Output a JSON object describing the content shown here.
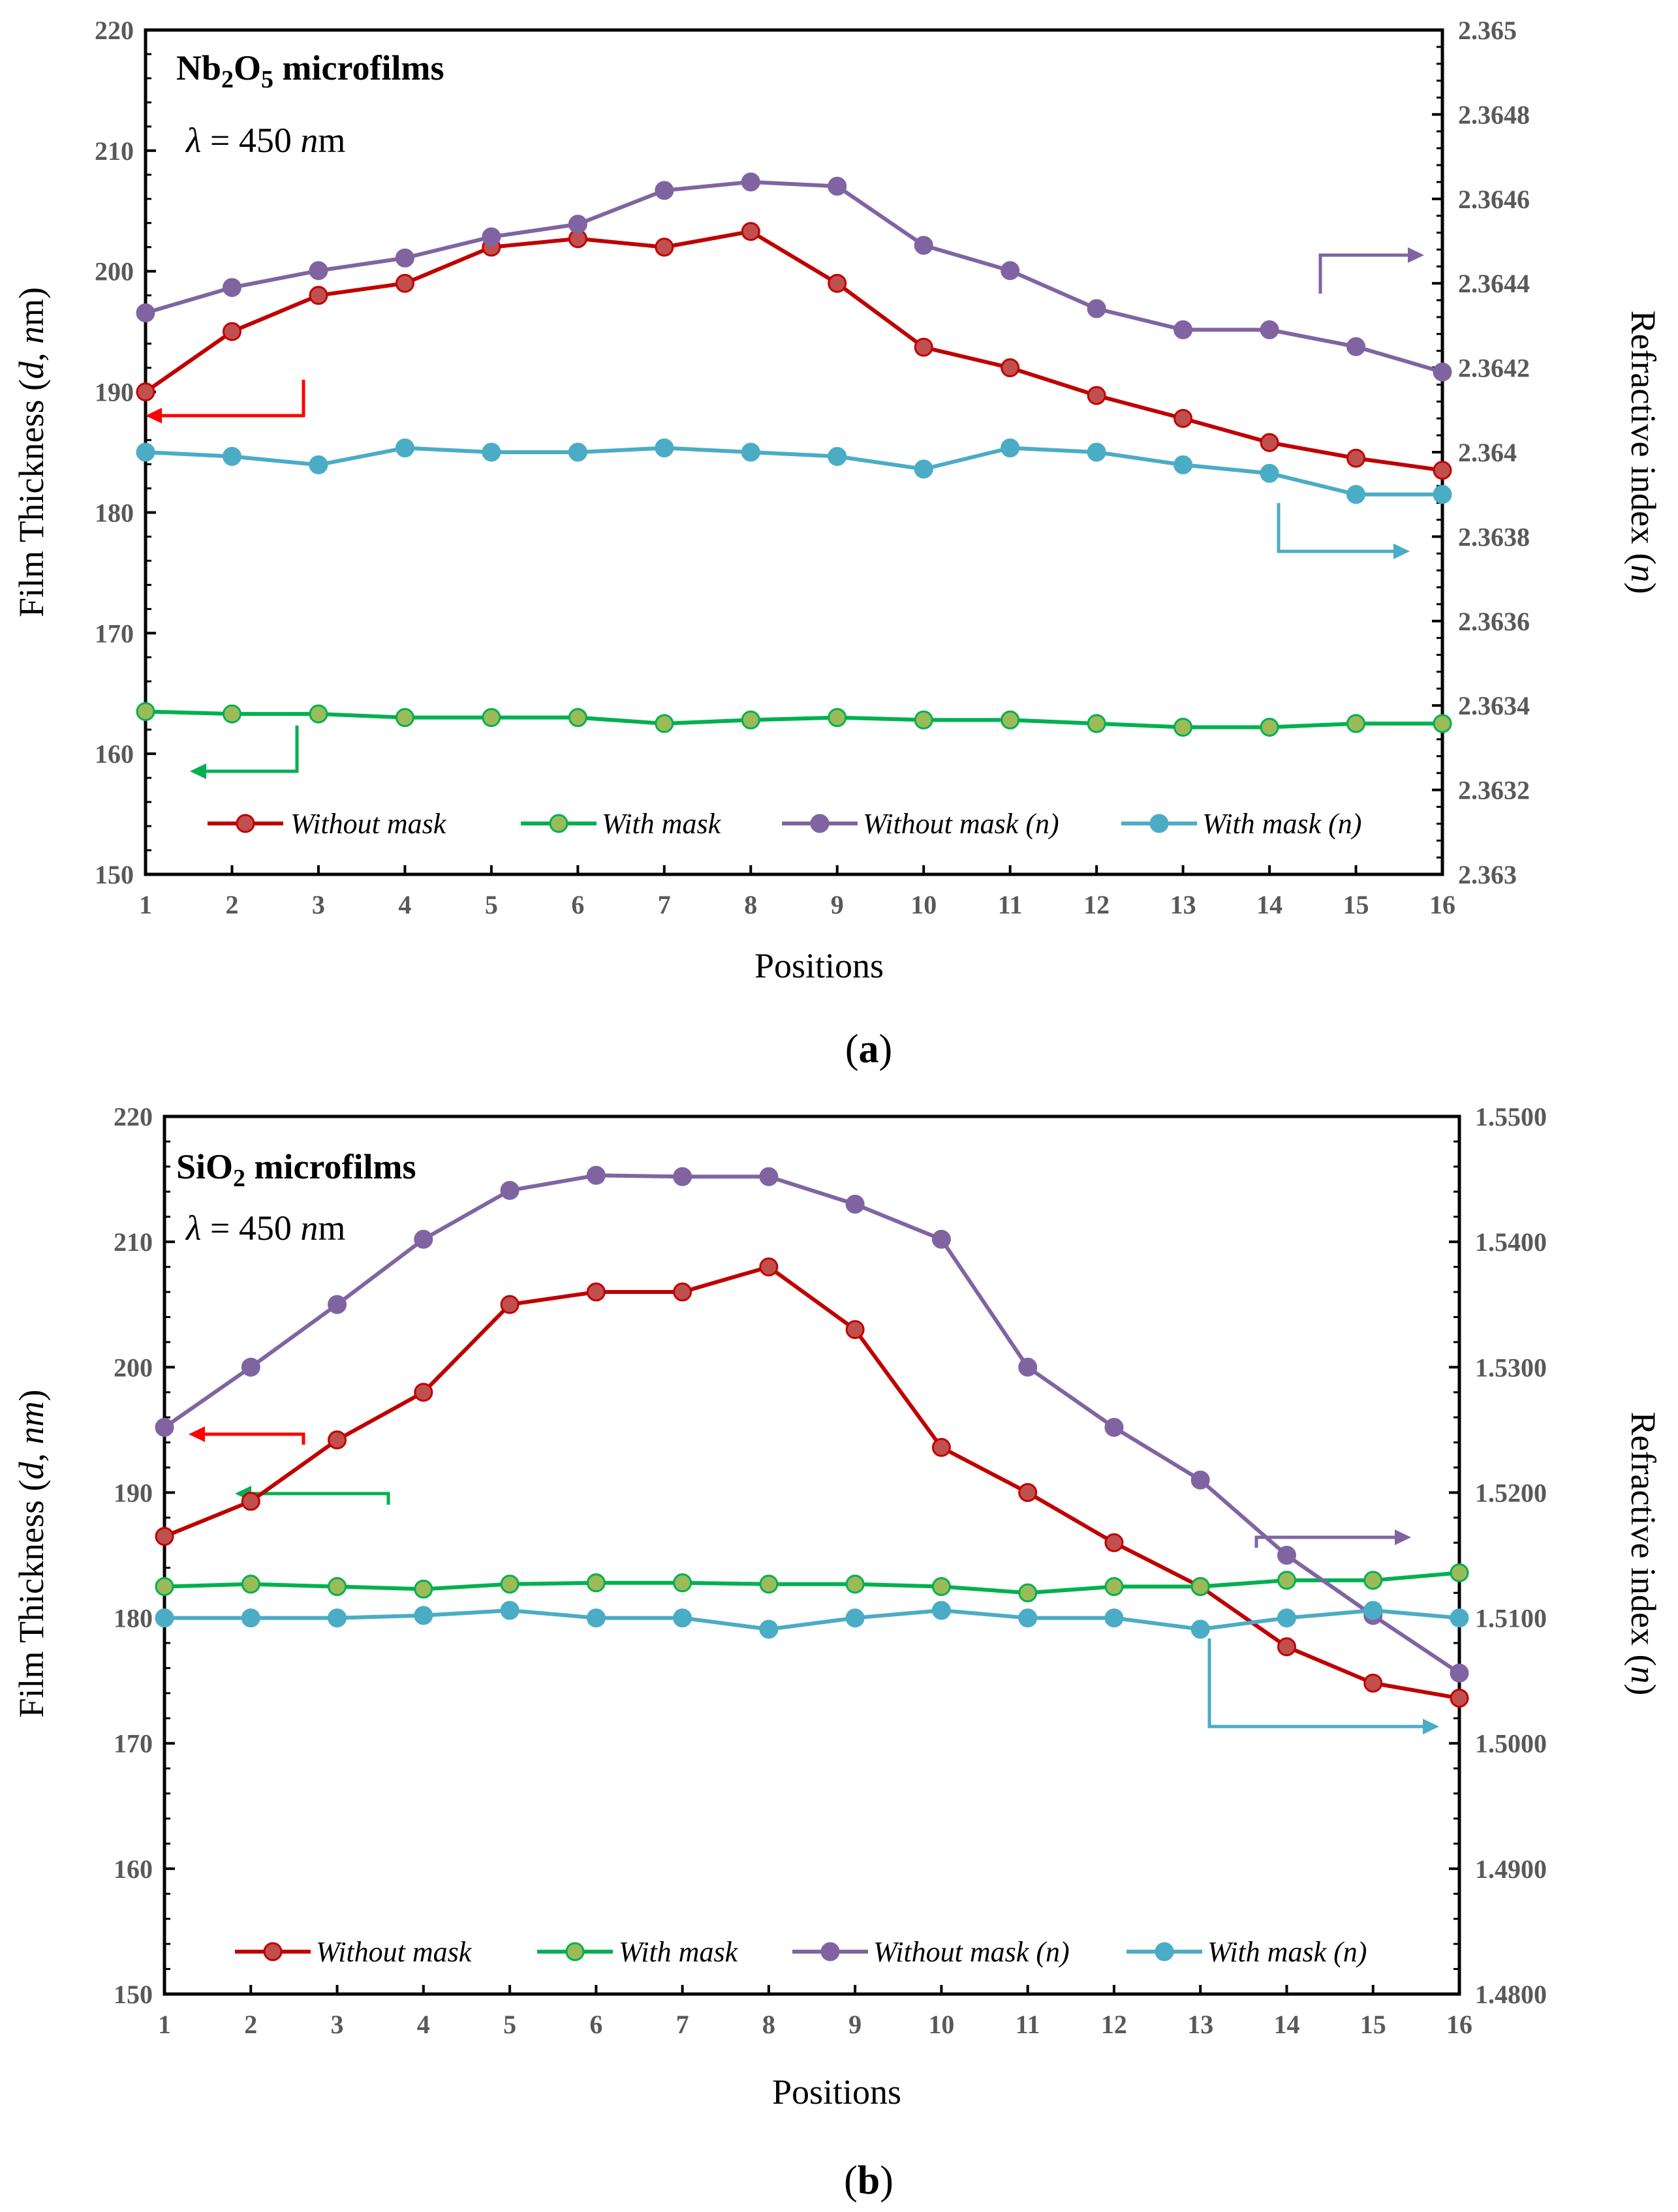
{
  "chart_data": [
    {
      "type": "line",
      "panel_label": "(a)",
      "panel_letter": "a",
      "material": "Nb",
      "sub1": "2",
      "material_mid": "O",
      "sub2": "5",
      "material_suffix": " microfilms",
      "lambda_sym": "λ",
      "lambda_eq": " = 450 ",
      "lambda_n": "n",
      "lambda_unit": "m",
      "xlabel": "Positions",
      "ylabel_pre": "Film Thickness (",
      "ylabel_d": "d",
      "ylabel_mid": ", ",
      "ylabel_n": "n",
      "ylabel_post": "m)",
      "y2label_pre": "Refractive index (",
      "y2label_n": "n",
      "y2label_post": ")",
      "categories": [
        "1",
        "2",
        "3",
        "4",
        "5",
        "6",
        "7",
        "8",
        "9",
        "10",
        "11",
        "12",
        "13",
        "14",
        "15",
        "16"
      ],
      "ylim": [
        150,
        220
      ],
      "y_ticks": [
        "150",
        "160",
        "170",
        "180",
        "190",
        "200",
        "210",
        "220"
      ],
      "y2lim": [
        2.363,
        2.365
      ],
      "y2_ticks": [
        "2.363",
        "2.3632",
        "2.3634",
        "2.3636",
        "2.3638",
        "2.364",
        "2.3642",
        "2.3644",
        "2.3646",
        "2.3648",
        "2.365"
      ],
      "series": [
        {
          "name": "Without mask",
          "axis": "left",
          "color": "#c00000",
          "marker_fill": "#c0504d",
          "values": [
            190,
            195,
            198,
            199,
            202,
            202.7,
            202,
            203.3,
            199,
            193.7,
            192,
            189.7,
            187.8,
            185.8,
            184.5,
            183.5
          ]
        },
        {
          "name": "With mask",
          "axis": "left",
          "color": "#00b050",
          "marker_fill": "#9bbb59",
          "values": [
            163.5,
            163.3,
            163.3,
            163,
            163,
            163,
            162.5,
            162.8,
            163,
            162.8,
            162.8,
            162.5,
            162.2,
            162.2,
            162.5,
            162.5
          ]
        },
        {
          "name": "Without mask (n)",
          "axis": "right",
          "color": "#8064a2",
          "marker_fill": "#8064a2",
          "values": [
            2.36433,
            2.36439,
            2.36443,
            2.36446,
            2.36451,
            2.36454,
            2.36462,
            2.36464,
            2.36463,
            2.36449,
            2.36443,
            2.36434,
            2.36429,
            2.36429,
            2.36425,
            2.36419
          ]
        },
        {
          "name": "With mask (n)",
          "axis": "right",
          "color": "#4bacc6",
          "marker_fill": "#4bacc6",
          "values": [
            2.364,
            2.36399,
            2.36397,
            2.36401,
            2.364,
            2.364,
            2.36401,
            2.364,
            2.36399,
            2.36396,
            2.36401,
            2.364,
            2.36397,
            2.36395,
            2.3639,
            2.3639
          ]
        }
      ],
      "legend": "bottom inside",
      "grid": false
    },
    {
      "type": "line",
      "panel_label": "(b)",
      "panel_letter": "b",
      "material": "SiO",
      "sub1": "2",
      "material_suffix": " microfilms",
      "lambda_sym": "λ",
      "lambda_eq": " = 450 ",
      "lambda_n": "n",
      "lambda_unit": "m",
      "xlabel": "Positions",
      "ylabel_pre": "Film Thickness (",
      "ylabel_d": "d",
      "ylabel_mid": ", ",
      "ylabel_n": "nm",
      "ylabel_post": ")",
      "y2label_pre": "Refractive index (",
      "y2label_n": "n",
      "y2label_post": ")",
      "categories": [
        "1",
        "2",
        "3",
        "4",
        "5",
        "6",
        "7",
        "8",
        "9",
        "10",
        "11",
        "12",
        "13",
        "14",
        "15",
        "16"
      ],
      "ylim": [
        150,
        220
      ],
      "y_ticks": [
        "150",
        "160",
        "170",
        "180",
        "190",
        "200",
        "210",
        "220"
      ],
      "y2lim": [
        1.48,
        1.55
      ],
      "y2_ticks": [
        "1.4800",
        "1.4900",
        "1.5000",
        "1.5100",
        "1.5200",
        "1.5300",
        "1.5400",
        "1.5500"
      ],
      "series": [
        {
          "name": "Without mask",
          "axis": "left",
          "color": "#c00000",
          "marker_fill": "#c0504d",
          "values": [
            186.5,
            189.3,
            194.2,
            198,
            205,
            206,
            206,
            208,
            203,
            193.6,
            190,
            186,
            182.5,
            177.7,
            174.8,
            173.6
          ]
        },
        {
          "name": "With mask",
          "axis": "left",
          "color": "#00b050",
          "marker_fill": "#9bbb59",
          "values": [
            182.5,
            182.7,
            182.5,
            182.3,
            182.7,
            182.8,
            182.8,
            182.7,
            182.7,
            182.5,
            182,
            182.5,
            182.5,
            183,
            183,
            183.6
          ]
        },
        {
          "name": "Without mask (n)",
          "axis": "right",
          "color": "#8064a2",
          "marker_fill": "#8064a2",
          "values": [
            1.5252,
            1.53,
            1.535,
            1.5402,
            1.5441,
            1.5453,
            1.5452,
            1.5452,
            1.543,
            1.5402,
            1.53,
            1.5252,
            1.521,
            1.515,
            1.5102,
            1.5056
          ]
        },
        {
          "name": "With mask (n)",
          "axis": "right",
          "color": "#4bacc6",
          "marker_fill": "#4bacc6",
          "values": [
            1.51,
            1.51,
            1.51,
            1.5102,
            1.5106,
            1.51,
            1.51,
            1.5091,
            1.51,
            1.5106,
            1.51,
            1.51,
            1.5091,
            1.51,
            1.5106,
            1.51
          ]
        }
      ],
      "legend": "bottom inside",
      "grid": false
    }
  ]
}
